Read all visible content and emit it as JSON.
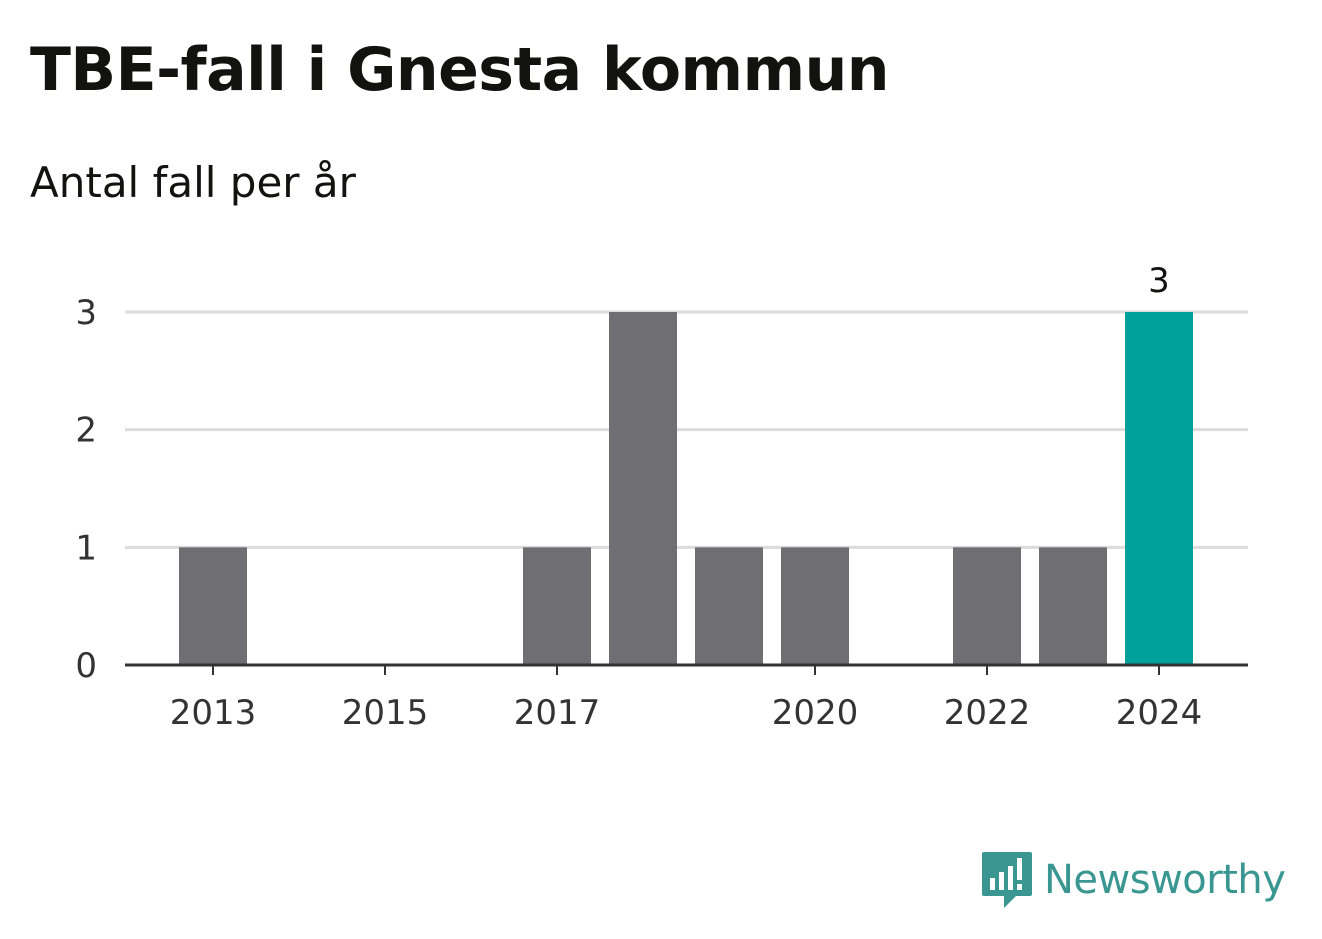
{
  "title": "TBE-fall i Gnesta kommun",
  "subtitle": "Antal fall per år",
  "brand": "Newsworthy",
  "colors": {
    "bar": "#6f6e73",
    "highlight": "#00a19a",
    "grid": "#dcdcdc",
    "axis": "#333333",
    "brand": "#3a9690"
  },
  "chart_data": {
    "type": "bar",
    "title": "TBE-fall i Gnesta kommun",
    "subtitle": "Antal fall per år",
    "categories": [
      "2013",
      "2014",
      "2015",
      "2016",
      "2017",
      "2018",
      "2019",
      "2020",
      "2021",
      "2022",
      "2023",
      "2024"
    ],
    "values": [
      1,
      0,
      0,
      0,
      1,
      3,
      1,
      1,
      0,
      1,
      1,
      3
    ],
    "x_tick_labels": [
      "2013",
      "2015",
      "2017",
      "2020",
      "2022",
      "2024"
    ],
    "y_ticks": [
      0,
      1,
      2,
      3
    ],
    "ylim": [
      0,
      3
    ],
    "highlight": "2024",
    "data_labels": [
      {
        "category": "2024",
        "text": "3"
      }
    ],
    "grid": true,
    "xlabel": "",
    "ylabel": ""
  }
}
